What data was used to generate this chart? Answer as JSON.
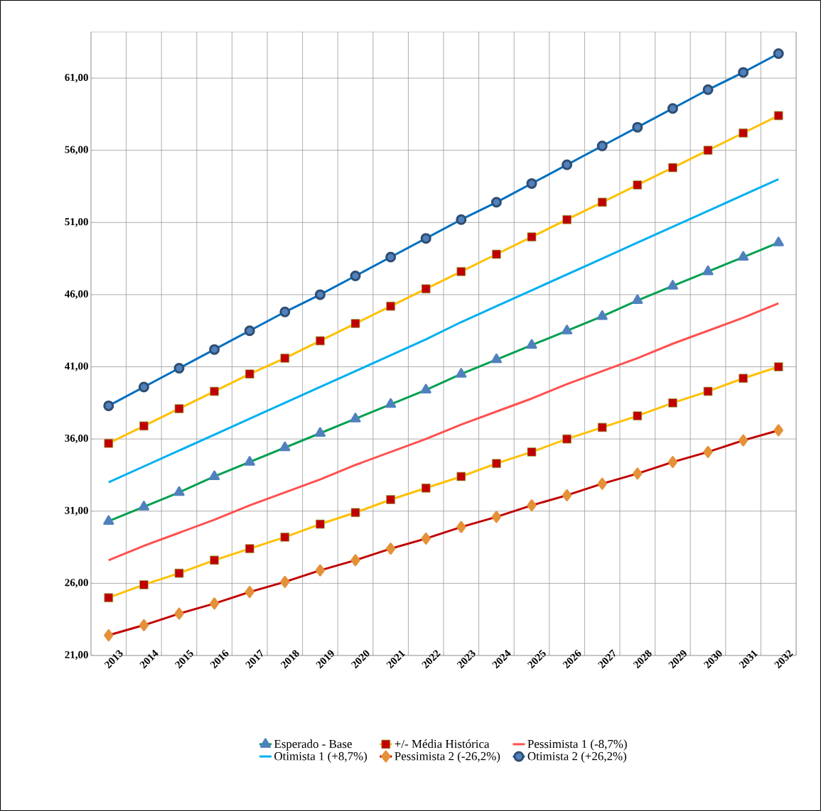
{
  "chart_data": {
    "type": "line",
    "categories": [
      "2013",
      "2014",
      "2015",
      "2016",
      "2017",
      "2018",
      "2019",
      "2020",
      "2021",
      "2022",
      "2023",
      "2024",
      "2025",
      "2026",
      "2027",
      "2028",
      "2029",
      "2030",
      "2031",
      "2032"
    ],
    "series": [
      {
        "name": "Esperado - Base",
        "color": "#00a050",
        "marker": "triangle",
        "values": [
          30.3,
          31.3,
          32.3,
          33.4,
          34.4,
          35.4,
          36.4,
          37.4,
          38.4,
          39.4,
          40.5,
          41.5,
          42.5,
          43.5,
          44.5,
          45.6,
          46.6,
          47.6,
          48.6,
          49.6
        ]
      },
      {
        "name": "+/- Média Histórica",
        "color": "#ffc000",
        "marker": "square",
        "values": [
          35.7,
          36.9,
          38.1,
          39.3,
          40.5,
          41.6,
          42.8,
          44.0,
          45.2,
          46.4,
          47.6,
          48.8,
          50.0,
          51.2,
          52.4,
          53.6,
          54.8,
          56.0,
          57.2,
          58.4
        ]
      },
      {
        "name": "Pessimista 1 (-8,7%)",
        "color": "#ff5050",
        "marker": "none",
        "values": [
          27.6,
          28.6,
          29.5,
          30.4,
          31.4,
          32.3,
          33.2,
          34.2,
          35.1,
          36.0,
          37.0,
          37.9,
          38.8,
          39.8,
          40.7,
          41.6,
          42.6,
          43.5,
          44.4,
          45.4
        ]
      },
      {
        "name": "Otimista 1 (+8,7%)",
        "color": "#00b0f0",
        "marker": "none",
        "values": [
          33.0,
          34.1,
          35.2,
          36.3,
          37.4,
          38.5,
          39.6,
          40.7,
          41.8,
          42.9,
          44.1,
          45.2,
          46.3,
          47.4,
          48.5,
          49.6,
          50.7,
          51.8,
          52.9,
          54.0
        ]
      },
      {
        "name": "Pessimista 2 (-26,2%)",
        "color": "#c00000",
        "marker": "diamond",
        "values": [
          22.4,
          23.1,
          23.9,
          24.6,
          25.4,
          26.1,
          26.9,
          27.6,
          28.4,
          29.1,
          29.9,
          30.6,
          31.4,
          32.1,
          32.9,
          33.6,
          34.4,
          35.1,
          35.9,
          36.6
        ]
      },
      {
        "name": "Otimista 2 (+26,2%)",
        "color": "#0070c0",
        "marker": "circle",
        "values": [
          38.3,
          39.6,
          40.9,
          42.2,
          43.5,
          44.8,
          46.0,
          47.3,
          48.6,
          49.9,
          51.2,
          52.4,
          53.7,
          55.0,
          56.3,
          57.6,
          58.9,
          60.2,
          61.4,
          62.7
        ]
      },
      {
        "color": "#ffc000",
        "marker": "square",
        "values": [
          25.0,
          25.9,
          26.7,
          27.6,
          28.4,
          29.2,
          30.1,
          30.9,
          31.8,
          32.6,
          33.4,
          34.3,
          35.1,
          36.0,
          36.8,
          37.6,
          38.5,
          39.3,
          40.2,
          41.0
        ]
      }
    ],
    "ylim": [
      21,
      64.2
    ],
    "yticks": [
      {
        "value": 21,
        "label": "21,00"
      },
      {
        "value": 26,
        "label": "26,00"
      },
      {
        "value": 31,
        "label": "31,00"
      },
      {
        "value": 36,
        "label": "36,00"
      },
      {
        "value": 41,
        "label": "41,00"
      },
      {
        "value": 46,
        "label": "46,00"
      },
      {
        "value": 51,
        "label": "51,00"
      },
      {
        "value": 56,
        "label": "56,00"
      },
      {
        "value": 61,
        "label": "61,00"
      }
    ],
    "grid": true,
    "legend": "bottom"
  }
}
